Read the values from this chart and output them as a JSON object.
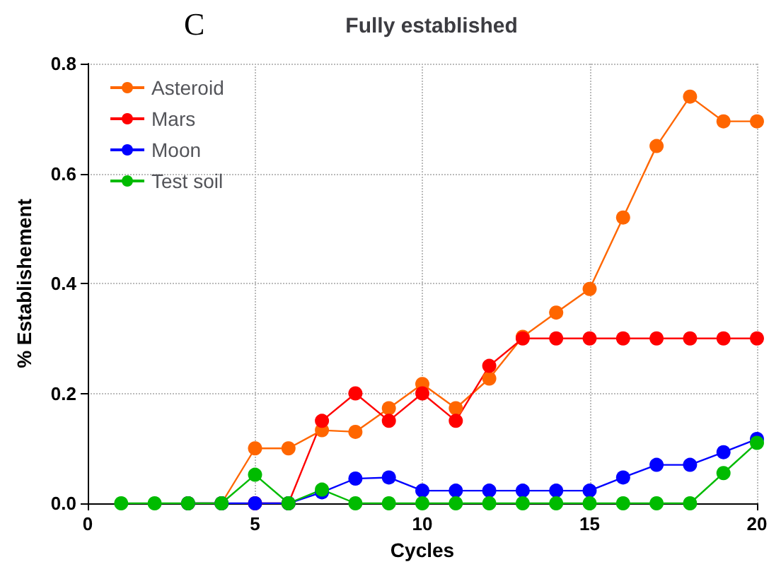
{
  "chart_data": {
    "type": "line",
    "title": "Fully established",
    "annotations": [
      "C"
    ],
    "xlabel": "Cycles",
    "ylabel": "% Establishement",
    "x": [
      1,
      2,
      3,
      4,
      5,
      6,
      7,
      8,
      9,
      10,
      11,
      12,
      13,
      14,
      15,
      16,
      17,
      18,
      19,
      20
    ],
    "series": [
      {
        "name": "Asteroid",
        "color": "#ff6600",
        "values": [
          null,
          null,
          0,
          0,
          0.1,
          0.1,
          0.133,
          0.13,
          0.173,
          0.217,
          0.173,
          0.227,
          0.303,
          0.347,
          0.39,
          0.52,
          0.65,
          0.74,
          0.695,
          0.695
        ]
      },
      {
        "name": "Mars",
        "color": "#ff0000",
        "values": [
          null,
          null,
          null,
          null,
          0,
          0,
          0.15,
          0.2,
          0.15,
          0.2,
          0.15,
          0.25,
          0.3,
          0.3,
          0.3,
          0.3,
          0.3,
          0.3,
          0.3,
          0.3
        ]
      },
      {
        "name": "Moon",
        "color": "#0000ff",
        "values": [
          null,
          null,
          0,
          0,
          0,
          0,
          0.02,
          0.045,
          0.047,
          0.023,
          0.023,
          0.023,
          0.023,
          0.023,
          0.023,
          0.047,
          0.07,
          0.07,
          0.093,
          0.117
        ]
      },
      {
        "name": "Test soil",
        "color": "#00bb00",
        "values": [
          0,
          0,
          0,
          0,
          0.052,
          0,
          0.025,
          0,
          0,
          0,
          0,
          0,
          0,
          0,
          0,
          0,
          0,
          0,
          0.055,
          0.11
        ]
      }
    ],
    "xlim": [
      0,
      20
    ],
    "xticks": [
      0,
      5,
      10,
      15,
      20
    ],
    "ylim": [
      0,
      0.8
    ],
    "yticks": [
      {
        "value": 0,
        "label": "0.0"
      },
      {
        "value": 0.2,
        "label": "0.2"
      },
      {
        "value": 0.4,
        "label": "0.4"
      },
      {
        "value": 0.6,
        "label": "0.6"
      },
      {
        "value": 0.8,
        "label": "0.8"
      }
    ],
    "grid": true,
    "legend": "top left",
    "marker": "circle",
    "line_style": "solid"
  }
}
